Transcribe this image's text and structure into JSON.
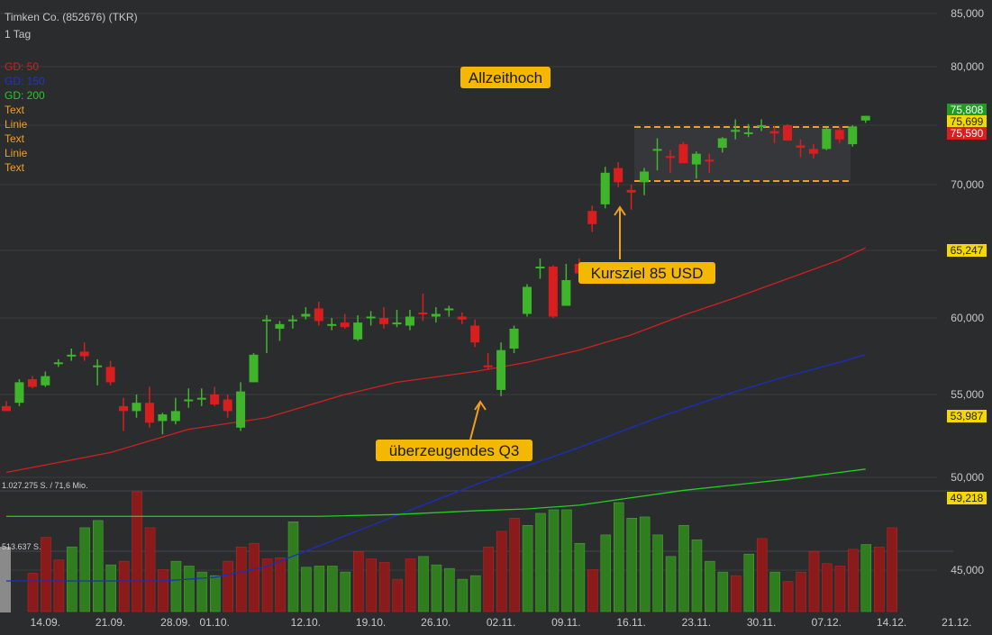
{
  "header": {
    "title": "Timken Co. (852676) (TKR)",
    "interval": "1 Tag"
  },
  "indicators": [
    {
      "label": "GD: 50",
      "color": "#cc2222"
    },
    {
      "label": "GD: 150",
      "color": "#2233cc"
    },
    {
      "label": "GD: 200",
      "color": "#22cc22"
    },
    {
      "label": "Text",
      "color": "#f0a020"
    },
    {
      "label": "Linie",
      "color": "#f0a020"
    },
    {
      "label": "Text",
      "color": "#f0a020"
    },
    {
      "label": "Linie",
      "color": "#f0a020"
    },
    {
      "label": "Text",
      "color": "#f0a020"
    }
  ],
  "colors": {
    "up": "#3fb52c",
    "down": "#d81e1e",
    "background": "#2b2c2e",
    "ma50": "#d02020",
    "ma150": "#1a2ec0",
    "ma200": "#20d020",
    "annotation": "#f5b800",
    "level": "#f0a020"
  },
  "chart_data": {
    "type": "candlestick",
    "title": "Timken Co. (852676) (TKR)",
    "interval": "1 Tag",
    "price_axis": {
      "ticks": [
        {
          "v": 85000,
          "label": "85,000"
        },
        {
          "v": 80000,
          "label": "80,000"
        },
        {
          "v": 75000,
          "label": "75,000"
        },
        {
          "v": 70000,
          "label": "70,000"
        },
        {
          "v": 65000,
          "label": "65,000"
        },
        {
          "v": 60000,
          "label": "60,000"
        },
        {
          "v": 55000,
          "label": "55,000"
        },
        {
          "v": 50000,
          "label": "50,000"
        },
        {
          "v": 45000,
          "label": "45,000"
        }
      ]
    },
    "date_axis": [
      {
        "i": 3,
        "label": "14.09."
      },
      {
        "i": 8,
        "label": "21.09."
      },
      {
        "i": 13,
        "label": "28.09."
      },
      {
        "i": 16,
        "label": "01.10."
      },
      {
        "i": 23,
        "label": "12.10."
      },
      {
        "i": 28,
        "label": "19.10."
      },
      {
        "i": 33,
        "label": "26.10."
      },
      {
        "i": 38,
        "label": "02.11."
      },
      {
        "i": 43,
        "label": "09.11."
      },
      {
        "i": 48,
        "label": "16.11."
      },
      {
        "i": 53,
        "label": "23.11."
      },
      {
        "i": 58,
        "label": "30.11."
      },
      {
        "i": 63,
        "label": "07.12."
      },
      {
        "i": 68,
        "label": "14.12."
      },
      {
        "i": 73,
        "label": "21.12."
      }
    ],
    "candles": [
      {
        "o": 54.3,
        "h": 54.6,
        "l": 54.0,
        "c": 54.0
      },
      {
        "o": 54.5,
        "h": 56.0,
        "l": 54.3,
        "c": 55.8
      },
      {
        "o": 56.0,
        "h": 56.2,
        "l": 55.4,
        "c": 55.5
      },
      {
        "o": 55.6,
        "h": 56.5,
        "l": 55.5,
        "c": 56.2
      },
      {
        "o": 57.1,
        "h": 57.3,
        "l": 56.8,
        "c": 57.1
      },
      {
        "o": 57.5,
        "h": 58.0,
        "l": 57.2,
        "c": 57.6
      },
      {
        "o": 57.8,
        "h": 58.4,
        "l": 57.2,
        "c": 57.5
      },
      {
        "o": 56.9,
        "h": 57.3,
        "l": 55.6,
        "c": 56.9
      },
      {
        "o": 56.8,
        "h": 57.2,
        "l": 55.6,
        "c": 55.8
      },
      {
        "o": 54.3,
        "h": 54.8,
        "l": 52.8,
        "c": 54.0
      },
      {
        "o": 54.0,
        "h": 55.0,
        "l": 53.6,
        "c": 54.5
      },
      {
        "o": 54.5,
        "h": 55.5,
        "l": 53.0,
        "c": 53.3
      },
      {
        "o": 53.4,
        "h": 53.9,
        "l": 52.6,
        "c": 53.8
      },
      {
        "o": 53.4,
        "h": 54.8,
        "l": 53.2,
        "c": 54.0
      },
      {
        "o": 54.6,
        "h": 55.4,
        "l": 54.2,
        "c": 54.7
      },
      {
        "o": 54.8,
        "h": 55.4,
        "l": 54.3,
        "c": 54.8
      },
      {
        "o": 55.0,
        "h": 55.5,
        "l": 54.3,
        "c": 54.4
      },
      {
        "o": 54.7,
        "h": 55.0,
        "l": 53.6,
        "c": 54.0
      },
      {
        "o": 53.0,
        "h": 55.8,
        "l": 52.8,
        "c": 55.2
      },
      {
        "o": 55.8,
        "h": 57.7,
        "l": 55.8,
        "c": 57.6
      },
      {
        "o": 59.9,
        "h": 60.2,
        "l": 57.7,
        "c": 59.9
      },
      {
        "o": 59.3,
        "h": 59.8,
        "l": 58.5,
        "c": 59.6
      },
      {
        "o": 59.9,
        "h": 60.2,
        "l": 59.3,
        "c": 59.9
      },
      {
        "o": 60.1,
        "h": 60.8,
        "l": 59.9,
        "c": 60.3
      },
      {
        "o": 60.7,
        "h": 61.2,
        "l": 59.5,
        "c": 59.8
      },
      {
        "o": 59.6,
        "h": 60.0,
        "l": 59.2,
        "c": 59.6
      },
      {
        "o": 59.7,
        "h": 60.3,
        "l": 59.3,
        "c": 59.4
      },
      {
        "o": 58.6,
        "h": 60.2,
        "l": 58.5,
        "c": 59.7
      },
      {
        "o": 60.0,
        "h": 60.5,
        "l": 59.5,
        "c": 60.1
      },
      {
        "o": 60.0,
        "h": 60.8,
        "l": 59.3,
        "c": 59.6
      },
      {
        "o": 59.6,
        "h": 60.6,
        "l": 59.4,
        "c": 59.7
      },
      {
        "o": 59.5,
        "h": 60.6,
        "l": 59.2,
        "c": 60.1
      },
      {
        "o": 60.4,
        "h": 61.8,
        "l": 59.8,
        "c": 60.3
      },
      {
        "o": 60.1,
        "h": 60.8,
        "l": 59.7,
        "c": 60.3
      },
      {
        "o": 60.7,
        "h": 60.9,
        "l": 60.1,
        "c": 60.7
      },
      {
        "o": 60.1,
        "h": 60.4,
        "l": 59.6,
        "c": 59.9
      },
      {
        "o": 59.5,
        "h": 59.9,
        "l": 58.1,
        "c": 58.4
      },
      {
        "o": 56.9,
        "h": 57.7,
        "l": 56.6,
        "c": 56.8
      },
      {
        "o": 55.3,
        "h": 58.4,
        "l": 54.9,
        "c": 57.9
      },
      {
        "o": 58.0,
        "h": 59.5,
        "l": 57.7,
        "c": 59.3
      },
      {
        "o": 60.3,
        "h": 62.5,
        "l": 60.1,
        "c": 62.3
      },
      {
        "o": 63.8,
        "h": 64.4,
        "l": 62.9,
        "c": 63.8
      },
      {
        "o": 63.8,
        "h": 63.9,
        "l": 60.0,
        "c": 60.1
      },
      {
        "o": 60.9,
        "h": 64.0,
        "l": 60.9,
        "c": 62.8
      },
      {
        "o": 64.0,
        "h": 64.4,
        "l": 62.8,
        "c": 63.3
      },
      {
        "o": 68.0,
        "h": 68.4,
        "l": 66.4,
        "c": 67.0
      },
      {
        "o": 68.5,
        "h": 71.5,
        "l": 68.2,
        "c": 71.0
      },
      {
        "o": 71.4,
        "h": 71.9,
        "l": 69.8,
        "c": 70.2
      },
      {
        "o": 69.6,
        "h": 70.0,
        "l": 68.1,
        "c": 69.4
      },
      {
        "o": 70.2,
        "h": 71.4,
        "l": 69.2,
        "c": 71.1
      },
      {
        "o": 72.9,
        "h": 73.9,
        "l": 71.2,
        "c": 73.0
      },
      {
        "o": 72.4,
        "h": 72.9,
        "l": 71.0,
        "c": 72.3
      },
      {
        "o": 73.4,
        "h": 73.6,
        "l": 71.8,
        "c": 71.8
      },
      {
        "o": 71.7,
        "h": 72.8,
        "l": 70.5,
        "c": 72.6
      },
      {
        "o": 72.1,
        "h": 72.6,
        "l": 71.0,
        "c": 72.0
      },
      {
        "o": 73.1,
        "h": 74.0,
        "l": 72.7,
        "c": 73.9
      },
      {
        "o": 74.6,
        "h": 75.5,
        "l": 73.8,
        "c": 74.6
      },
      {
        "o": 74.4,
        "h": 75.1,
        "l": 74.0,
        "c": 74.4
      },
      {
        "o": 75.0,
        "h": 75.5,
        "l": 74.5,
        "c": 75.0
      },
      {
        "o": 74.5,
        "h": 74.9,
        "l": 73.5,
        "c": 74.3
      },
      {
        "o": 75.0,
        "h": 75.1,
        "l": 73.7,
        "c": 73.7
      },
      {
        "o": 73.3,
        "h": 73.8,
        "l": 72.3,
        "c": 73.1
      },
      {
        "o": 73.0,
        "h": 73.4,
        "l": 72.2,
        "c": 72.6
      },
      {
        "o": 73.0,
        "h": 74.8,
        "l": 72.9,
        "c": 74.7
      },
      {
        "o": 74.6,
        "h": 74.9,
        "l": 73.5,
        "c": 73.8
      },
      {
        "o": 73.4,
        "h": 75.0,
        "l": 73.2,
        "c": 74.9
      },
      {
        "o": 75.4,
        "h": 75.8,
        "l": 75.2,
        "c": 75.8
      }
    ],
    "ma50": [
      [
        0,
        50.3
      ],
      [
        8,
        51.5
      ],
      [
        14,
        52.9
      ],
      [
        20,
        53.6
      ],
      [
        26,
        55.0
      ],
      [
        30,
        55.8
      ],
      [
        36,
        56.5
      ],
      [
        40,
        57.1
      ],
      [
        44,
        57.9
      ],
      [
        48,
        58.9
      ],
      [
        52,
        60.2
      ],
      [
        56,
        61.5
      ],
      [
        60,
        62.9
      ],
      [
        64,
        64.3
      ],
      [
        66,
        65.2
      ]
    ],
    "ma150": [
      [
        0,
        44.4
      ],
      [
        12,
        44.4
      ],
      [
        16,
        44.6
      ],
      [
        20,
        45.2
      ],
      [
        28,
        47.4
      ],
      [
        32,
        48.5
      ],
      [
        36,
        49.6
      ],
      [
        40,
        50.7
      ],
      [
        44,
        51.8
      ],
      [
        50,
        53.6
      ],
      [
        56,
        55.2
      ],
      [
        60,
        56.2
      ],
      [
        64,
        57.1
      ],
      [
        66,
        57.6
      ]
    ],
    "ma200": [
      [
        0,
        47.9
      ],
      [
        10,
        47.9
      ],
      [
        18,
        47.9
      ],
      [
        24,
        47.9
      ],
      [
        30,
        48.0
      ],
      [
        36,
        48.2
      ],
      [
        40,
        48.3
      ],
      [
        44,
        48.5
      ],
      [
        48,
        48.9
      ],
      [
        52,
        49.3
      ],
      [
        56,
        49.6
      ],
      [
        60,
        49.9
      ],
      [
        64,
        50.3
      ],
      [
        66,
        50.5
      ]
    ],
    "volume": {
      "label_top": "1.027.275 S. / 71,6 Mio.",
      "label_mid": "513.637 S.",
      "bars": [
        320,
        620,
        430,
        540,
        700,
        760,
        390,
        420,
        1000,
        700,
        350,
        420,
        380,
        330,
        300,
        420,
        540,
        570,
        440,
        450,
        750,
        370,
        380,
        380,
        330,
        500,
        440,
        410,
        270,
        440,
        460,
        390,
        360,
        270,
        300,
        540,
        670,
        780,
        720,
        820,
        850,
        850,
        570,
        350,
        640,
        910,
        780,
        790,
        640,
        460,
        720,
        600,
        420,
        330,
        300,
        480,
        610,
        330,
        250,
        330,
        500,
        400,
        380,
        520,
        560,
        540,
        700
      ],
      "colors": "ddduuuudddduuuuddddduuuuuddddduuuuuddduuuuuduuuuuuuuuudududdddddu"
    },
    "price_labels": [
      {
        "value": "75,808",
        "bg": "#1e9e1e",
        "fg": "#ffffff"
      },
      {
        "value": "75,699",
        "bg": "#f5d800",
        "fg": "#222222"
      },
      {
        "value": "75,590",
        "bg": "#d81e1e",
        "fg": "#ffffff"
      },
      {
        "value": "65,247",
        "bg": "#f5d800",
        "fg": "#222222"
      },
      {
        "value": "53,987",
        "bg": "#f5d800",
        "fg": "#222222"
      },
      {
        "value": "49,218",
        "bg": "#f5d800",
        "fg": "#222222"
      }
    ],
    "annotations": [
      {
        "text": "Allzeithoch"
      },
      {
        "text": "Kursziel 85 USD"
      },
      {
        "text": "überzeugendes Q3"
      }
    ],
    "levels": [
      74.85,
      70.3
    ]
  }
}
